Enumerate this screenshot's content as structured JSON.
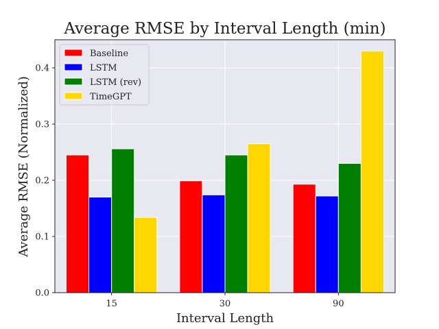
{
  "chart_data": {
    "type": "bar",
    "title": "Average RMSE by Interval Length (min)",
    "xlabel": "Interval Length",
    "ylabel": "Average RMSE (Normalized)",
    "categories": [
      "15",
      "30",
      "90"
    ],
    "ylim": [
      0,
      0.45
    ],
    "yticks": [
      "0.0",
      "0.1",
      "0.2",
      "0.3",
      "0.4"
    ],
    "grid": true,
    "legend_position": "top-left",
    "background_color": "#e8e8f0",
    "series": [
      {
        "name": "Baseline",
        "color": "#ff0000",
        "values": [
          0.245,
          0.199,
          0.193
        ]
      },
      {
        "name": "LSTM",
        "color": "#0000ff",
        "values": [
          0.17,
          0.174,
          0.172
        ]
      },
      {
        "name": "LSTM (rev)",
        "color": "#008000",
        "values": [
          0.256,
          0.245,
          0.23
        ]
      },
      {
        "name": "TimeGPT",
        "color": "#ffd700",
        "values": [
          0.134,
          0.265,
          0.43
        ]
      }
    ]
  }
}
